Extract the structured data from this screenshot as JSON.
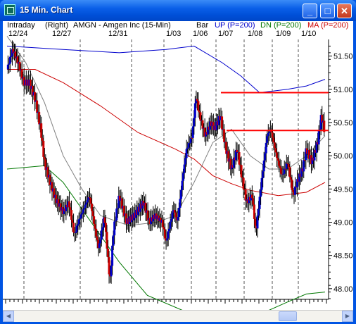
{
  "window": {
    "title": "15 Min. Chart",
    "minimize": "_",
    "maximize": "□",
    "close": "✕"
  },
  "header": {
    "mode": "Intraday",
    "axis_side": "(Right)",
    "symbol": "AMGN - Amgen Inc  (15-Min)",
    "bar": "Bar",
    "up": "UP (P=200)",
    "dn": "DN (P=200)",
    "ma": "MA (P=200)"
  },
  "dates": [
    "12/24",
    "12/27",
    "12/31",
    "1/03",
    "1/06",
    "1/07",
    "1/08",
    "1/09",
    "1/10"
  ],
  "colors": {
    "up_bar": "#0000cc",
    "down_bar": "#cc0000",
    "upper_band": "#0000cc",
    "lower_band": "#007700",
    "ma": "#cc0000",
    "fast_ma": "#808080",
    "hline": "#ff0000"
  },
  "chart_data": {
    "type": "candlestick",
    "y_ticks": [
      "51.50",
      "51.00",
      "50.50",
      "50.00",
      "49.50",
      "49.00",
      "48.50",
      "48.00"
    ],
    "ylim": [
      47.85,
      51.75
    ],
    "close_path": [
      [
        0,
        51.3
      ],
      [
        6,
        51.6
      ],
      [
        12,
        51.4
      ],
      [
        18,
        51.1
      ],
      [
        24,
        51.1
      ],
      [
        30,
        50.85
      ],
      [
        36,
        50.4
      ],
      [
        40,
        49.9
      ],
      [
        46,
        49.6
      ],
      [
        52,
        49.35
      ],
      [
        60,
        49.15
      ],
      [
        66,
        49.3
      ],
      [
        72,
        48.8
      ],
      [
        76,
        49.0
      ],
      [
        82,
        49.2
      ],
      [
        88,
        49.4
      ],
      [
        94,
        48.9
      ],
      [
        98,
        48.6
      ],
      [
        104,
        49.1
      ],
      [
        110,
        48.1
      ],
      [
        114,
        48.9
      ],
      [
        120,
        49.4
      ],
      [
        128,
        49.0
      ],
      [
        136,
        49.1
      ],
      [
        146,
        49.3
      ],
      [
        152,
        49.0
      ],
      [
        158,
        49.1
      ],
      [
        166,
        49.0
      ],
      [
        170,
        48.7
      ],
      [
        178,
        49.2
      ],
      [
        182,
        49.0
      ],
      [
        188,
        49.7
      ],
      [
        192,
        50.1
      ],
      [
        198,
        50.3
      ],
      [
        202,
        50.9
      ],
      [
        206,
        50.6
      ],
      [
        212,
        50.3
      ],
      [
        218,
        50.5
      ],
      [
        222,
        50.4
      ],
      [
        228,
        50.6
      ],
      [
        234,
        50.1
      ],
      [
        240,
        49.8
      ],
      [
        246,
        50.1
      ],
      [
        252,
        49.6
      ],
      [
        256,
        49.3
      ],
      [
        262,
        49.4
      ],
      [
        266,
        48.85
      ],
      [
        272,
        49.6
      ],
      [
        278,
        50.3
      ],
      [
        282,
        50.4
      ],
      [
        288,
        50.0
      ],
      [
        294,
        49.7
      ],
      [
        300,
        49.9
      ],
      [
        306,
        49.4
      ],
      [
        310,
        49.6
      ],
      [
        316,
        49.8
      ],
      [
        320,
        50.1
      ],
      [
        326,
        49.9
      ],
      [
        332,
        50.2
      ],
      [
        336,
        50.6
      ],
      [
        340,
        50.35
      ]
    ],
    "upper_band": [
      [
        0,
        51.65
      ],
      [
        60,
        51.6
      ],
      [
        120,
        51.55
      ],
      [
        170,
        51.6
      ],
      [
        200,
        51.65
      ],
      [
        230,
        51.4
      ],
      [
        250,
        51.2
      ],
      [
        270,
        50.95
      ],
      [
        300,
        51.0
      ],
      [
        320,
        51.05
      ],
      [
        340,
        51.15
      ]
    ],
    "lower_band": [
      [
        0,
        49.8
      ],
      [
        40,
        49.85
      ],
      [
        60,
        49.6
      ],
      [
        90,
        49.0
      ],
      [
        120,
        48.4
      ],
      [
        150,
        47.9
      ],
      [
        200,
        47.6
      ],
      [
        260,
        47.55
      ],
      [
        300,
        47.8
      ],
      [
        320,
        47.92
      ],
      [
        340,
        47.95
      ]
    ],
    "ma_200": [
      [
        0,
        51.3
      ],
      [
        30,
        51.3
      ],
      [
        60,
        51.1
      ],
      [
        100,
        50.75
      ],
      [
        140,
        50.35
      ],
      [
        180,
        50.1
      ],
      [
        200,
        49.95
      ],
      [
        220,
        49.7
      ],
      [
        240,
        49.58
      ],
      [
        260,
        49.48
      ],
      [
        290,
        49.4
      ],
      [
        320,
        49.45
      ],
      [
        340,
        49.6
      ]
    ],
    "fast_ma": [
      [
        0,
        51.8
      ],
      [
        20,
        51.4
      ],
      [
        40,
        50.8
      ],
      [
        60,
        50.0
      ],
      [
        80,
        49.5
      ],
      [
        100,
        49.1
      ],
      [
        130,
        48.95
      ],
      [
        160,
        49.0
      ],
      [
        180,
        49.1
      ],
      [
        200,
        49.6
      ],
      [
        220,
        50.2
      ],
      [
        240,
        50.4
      ],
      [
        260,
        50.0
      ],
      [
        280,
        49.8
      ],
      [
        300,
        49.8
      ],
      [
        320,
        50.0
      ],
      [
        340,
        50.3
      ]
    ],
    "hlines": [
      50.95,
      50.38
    ]
  }
}
